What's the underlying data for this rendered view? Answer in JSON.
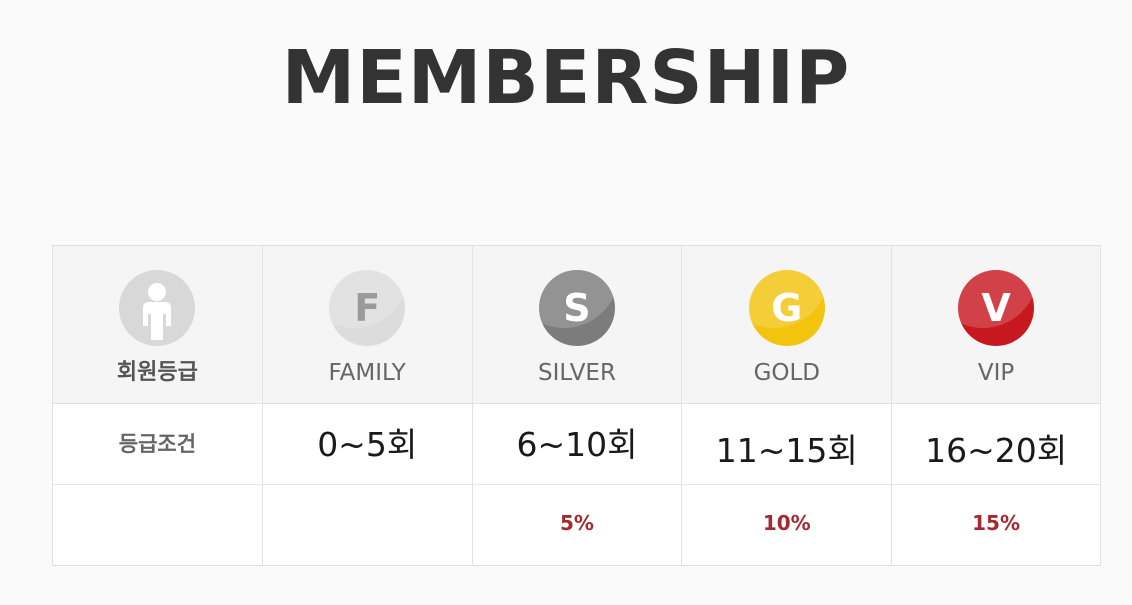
{
  "title": "MEMBERSHIP",
  "table": {
    "header_label": "회원등급",
    "condition_label": "등급조건",
    "tiers": [
      {
        "name": "FAMILY",
        "badge_letter": "F",
        "badge_color": "#dcdcdc",
        "condition": "0~5회",
        "discount": ""
      },
      {
        "name": "SILVER",
        "badge_letter": "S",
        "badge_color": "#7c7c7c",
        "condition": "6~10회",
        "discount": "5%"
      },
      {
        "name": "GOLD",
        "badge_letter": "G",
        "badge_color": "#f2c40e",
        "condition": "11~15회",
        "discount": "10%"
      },
      {
        "name": "VIP",
        "badge_letter": "V",
        "badge_color": "#c7181f",
        "condition": "16~20회",
        "discount": "15%"
      }
    ],
    "member_icon": "person-icon",
    "discount_color": "#a32a2f"
  }
}
